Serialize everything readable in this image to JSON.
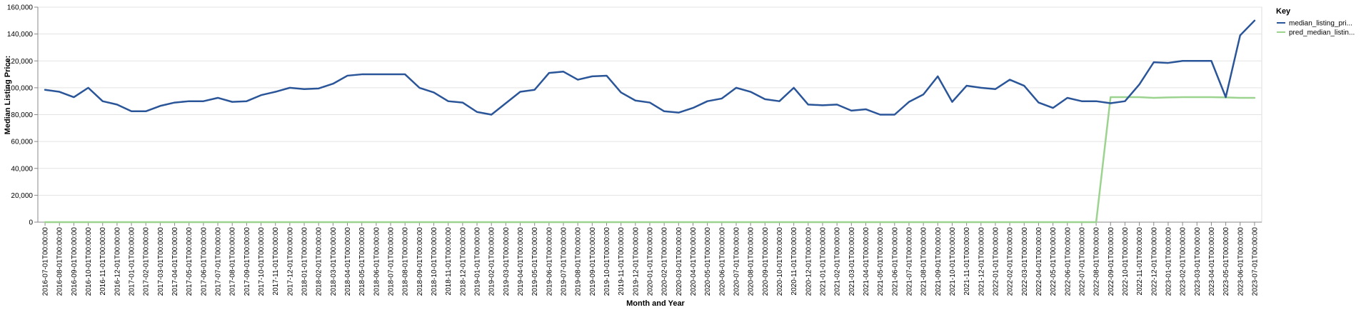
{
  "chart_data": {
    "type": "line",
    "title": "",
    "xlabel": "Month and Year",
    "ylabel": "Median Listing Price:",
    "ylim": [
      0,
      160000
    ],
    "yticks": [
      "0",
      "20,000",
      "40,000",
      "60,000",
      "80,000",
      "100,000",
      "120,000",
      "140,000",
      "160,000"
    ],
    "grid": true,
    "legend_title": "Key",
    "legend_position": "top-right",
    "categories": [
      "2016-07-01T00:00:00",
      "2016-08-01T00:00:00",
      "2016-09-01T00:00:00",
      "2016-10-01T00:00:00",
      "2016-11-01T00:00:00",
      "2016-12-01T00:00:00",
      "2017-01-01T00:00:00",
      "2017-02-01T00:00:00",
      "2017-03-01T00:00:00",
      "2017-04-01T00:00:00",
      "2017-05-01T00:00:00",
      "2017-06-01T00:00:00",
      "2017-07-01T00:00:00",
      "2017-08-01T00:00:00",
      "2017-09-01T00:00:00",
      "2017-10-01T00:00:00",
      "2017-11-01T00:00:00",
      "2017-12-01T00:00:00",
      "2018-01-01T00:00:00",
      "2018-02-01T00:00:00",
      "2018-03-01T00:00:00",
      "2018-04-01T00:00:00",
      "2018-05-01T00:00:00",
      "2018-06-01T00:00:00",
      "2018-07-01T00:00:00",
      "2018-08-01T00:00:00",
      "2018-09-01T00:00:00",
      "2018-10-01T00:00:00",
      "2018-11-01T00:00:00",
      "2018-12-01T00:00:00",
      "2019-01-01T00:00:00",
      "2019-02-01T00:00:00",
      "2019-03-01T00:00:00",
      "2019-04-01T00:00:00",
      "2019-05-01T00:00:00",
      "2019-06-01T00:00:00",
      "2019-07-01T00:00:00",
      "2019-08-01T00:00:00",
      "2019-09-01T00:00:00",
      "2019-10-01T00:00:00",
      "2019-11-01T00:00:00",
      "2019-12-01T00:00:00",
      "2020-01-01T00:00:00",
      "2020-02-01T00:00:00",
      "2020-03-01T00:00:00",
      "2020-04-01T00:00:00",
      "2020-05-01T00:00:00",
      "2020-06-01T00:00:00",
      "2020-07-01T00:00:00",
      "2020-08-01T00:00:00",
      "2020-09-01T00:00:00",
      "2020-10-01T00:00:00",
      "2020-11-01T00:00:00",
      "2020-12-01T00:00:00",
      "2021-01-01T00:00:00",
      "2021-02-01T00:00:00",
      "2021-03-01T00:00:00",
      "2021-04-01T00:00:00",
      "2021-05-01T00:00:00",
      "2021-06-01T00:00:00",
      "2021-07-01T00:00:00",
      "2021-08-01T00:00:00",
      "2021-09-01T00:00:00",
      "2021-10-01T00:00:00",
      "2021-11-01T00:00:00",
      "2021-12-01T00:00:00",
      "2022-01-01T00:00:00",
      "2022-02-01T00:00:00",
      "2022-03-01T00:00:00",
      "2022-04-01T00:00:00",
      "2022-05-01T00:00:00",
      "2022-06-01T00:00:00",
      "2022-07-01T00:00:00",
      "2022-08-01T00:00:00",
      "2022-09-01T00:00:00",
      "2022-10-01T00:00:00",
      "2022-11-01T00:00:00",
      "2022-12-01T00:00:00",
      "2023-01-01T00:00:00",
      "2023-02-01T00:00:00",
      "2023-03-01T00:00:00",
      "2023-04-01T00:00:00",
      "2023-05-01T00:00:00",
      "2023-06-01T00:00:00",
      "2023-07-01T00:00:00"
    ],
    "series": [
      {
        "name": "median_listing_pri...",
        "color": "#2a5598",
        "values": [
          98500,
          97000,
          93000,
          100000,
          90000,
          87500,
          82500,
          82500,
          86500,
          89000,
          90000,
          90000,
          92500,
          89500,
          90000,
          94500,
          97000,
          100000,
          99000,
          99500,
          103000,
          109000,
          110000,
          110000,
          110000,
          110000,
          100000,
          96500,
          90000,
          89000,
          82000,
          80000,
          88500,
          97000,
          98500,
          111000,
          112000,
          106000,
          108500,
          109000,
          96500,
          90500,
          89000,
          82500,
          81500,
          85000,
          90000,
          92000,
          100000,
          97000,
          91500,
          90000,
          100000,
          87500,
          87000,
          87500,
          83000,
          84000,
          80000,
          80000,
          89500,
          95000,
          108500,
          89500,
          101500,
          100000,
          99000,
          106000,
          101500,
          89000,
          85000,
          92500,
          90000,
          90000,
          88500,
          90000,
          102500,
          119000,
          118500,
          120000,
          120000,
          120000,
          93000,
          139000,
          150000
        ]
      },
      {
        "name": "pred_median_listin...",
        "color": "#9bd38f",
        "values": [
          0,
          0,
          0,
          0,
          0,
          0,
          0,
          0,
          0,
          0,
          0,
          0,
          0,
          0,
          0,
          0,
          0,
          0,
          0,
          0,
          0,
          0,
          0,
          0,
          0,
          0,
          0,
          0,
          0,
          0,
          0,
          0,
          0,
          0,
          0,
          0,
          0,
          0,
          0,
          0,
          0,
          0,
          0,
          0,
          0,
          0,
          0,
          0,
          0,
          0,
          0,
          0,
          0,
          0,
          0,
          0,
          0,
          0,
          0,
          0,
          0,
          0,
          0,
          0,
          0,
          0,
          0,
          0,
          0,
          0,
          0,
          0,
          0,
          0,
          93000,
          93000,
          93000,
          92500,
          92800,
          93000,
          93000,
          93000,
          92800,
          92500,
          92500
        ]
      }
    ]
  }
}
